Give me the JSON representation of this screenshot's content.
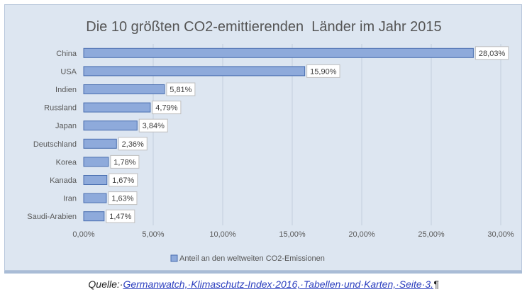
{
  "chart_data": {
    "type": "bar",
    "orientation": "horizontal",
    "title": "Die 10 größten CO2-emittierenden  Länder im Jahr 2015",
    "categories": [
      "China",
      "USA",
      "Indien",
      "Russland",
      "Japan",
      "Deutschland",
      "Korea",
      "Kanada",
      "Iran",
      "Saudi-Arabien"
    ],
    "series": [
      {
        "name": "Anteil an den weltweiten CO2-Emissionen",
        "values": [
          28.03,
          15.9,
          5.81,
          4.79,
          3.84,
          2.36,
          1.78,
          1.67,
          1.63,
          1.47
        ],
        "labels": [
          "28,03%",
          "15,90%",
          "5,81%",
          "4,79%",
          "3,84%",
          "2,36%",
          "1,78%",
          "1,67%",
          "1,63%",
          "1,47%"
        ]
      }
    ],
    "x_ticks": [
      0,
      5,
      10,
      15,
      20,
      25,
      30
    ],
    "x_tick_labels": [
      "0,00%",
      "5,00%",
      "10,00%",
      "15,00%",
      "20,00%",
      "25,00%",
      "30,00%"
    ],
    "xlim": [
      0,
      30
    ],
    "grid": true,
    "legend_position": "bottom",
    "colors": {
      "bar": "#8eaadb",
      "bar_border": "#4a6fb0",
      "background": "#dde6f1"
    }
  },
  "source": {
    "prefix": "Quelle:·",
    "link": "Germanwatch,·Klimaschutz-Index·2016,·Tabellen·und·Karten,·Seite·3.",
    "mark": "¶"
  }
}
